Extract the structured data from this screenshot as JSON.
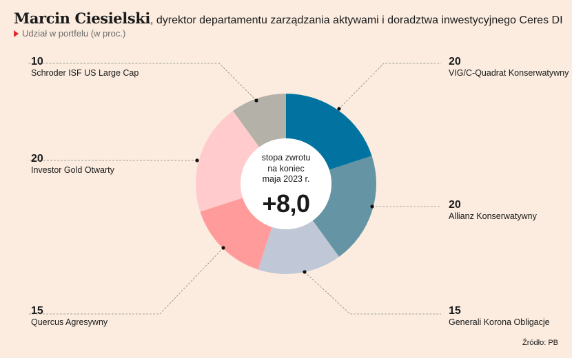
{
  "header": {
    "name": "Marcin Ciesielski",
    "rest": ", dyrektor departamentu zarządzania aktywami i doradztwa inwestycyjnego Ceres DI",
    "subtitle": "Udział w portfelu (w proc.)"
  },
  "center": {
    "text_lines": [
      "stopa zwrotu",
      "na koniec",
      "maja 2023 r."
    ],
    "value": "+8,0"
  },
  "source": "Źródło: PB",
  "chart_data": {
    "type": "pie",
    "variant": "donut",
    "title": "Marcin Ciesielski, dyrektor departamentu zarządzania aktywami i doradztwa inwestycyjnego Ceres DI",
    "subtitle": "Udział w portfelu (w proc.)",
    "categories": [
      "VIG/C-Quadrat Konserwatywny",
      "Allianz Konserwatywny",
      "Generali Korona Obligacje",
      "Quercus Agresywny",
      "Investor Gold Otwarty",
      "Schroder ISF US Large Cap"
    ],
    "values": [
      20,
      20,
      15,
      15,
      20,
      10
    ],
    "value_labels": [
      "20",
      "20",
      "15",
      "15",
      "20",
      "10"
    ],
    "colors": [
      "#0273a0",
      "#6594a4",
      "#c0c8d8",
      "#ff9b9b",
      "#ffcbcd",
      "#b4b2a8"
    ],
    "start_angle": "12 o'clock",
    "direction": "clockwise"
  }
}
